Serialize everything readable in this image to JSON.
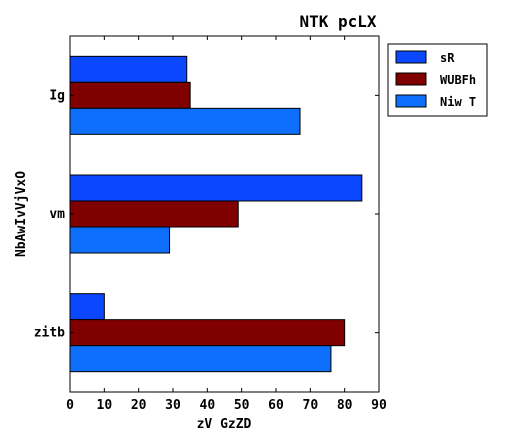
{
  "chart_data": {
    "type": "bar",
    "orientation": "horizontal",
    "title": "NTK pcLX",
    "xlabel": "zV GzZD",
    "ylabel": "NbAwIvVjVxO",
    "categories": [
      "Ig",
      "vm",
      "zitb"
    ],
    "series": [
      {
        "name": "sR",
        "color": "#0a47ff",
        "values": [
          34,
          85,
          10
        ]
      },
      {
        "name": "WUBFh",
        "color": "#800000",
        "values": [
          35,
          49,
          80
        ]
      },
      {
        "name": "Niw T",
        "color": "#0d6ffb",
        "values": [
          67,
          29,
          76
        ]
      }
    ],
    "xlim": [
      0,
      90
    ],
    "xticks": [
      "0",
      "10",
      "20",
      "30",
      "40",
      "50",
      "60",
      "70",
      "80",
      "90"
    ],
    "grid": false,
    "legend_position": "top-right"
  }
}
